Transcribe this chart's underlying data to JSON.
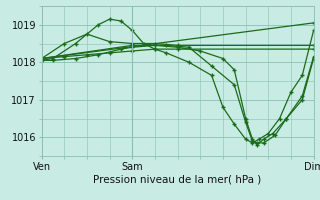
{
  "title": "Pression niveau de la mer( hPa )",
  "line_color": "#1a6b1a",
  "marker": "+",
  "bg_color": "#c8ece4",
  "grid_color": "#8abfb5",
  "xlim": [
    0,
    12
  ],
  "ylim": [
    1015.5,
    1019.5
  ],
  "yticks": [
    1016,
    1017,
    1018,
    1019
  ],
  "xtick_positions": [
    0,
    4,
    12
  ],
  "xtick_labels": [
    "Ven",
    "Sam",
    "Dim"
  ],
  "lines": [
    [
      0.0,
      1018.05,
      0.5,
      1018.1,
      1.5,
      1018.5,
      2.5,
      1019.0,
      3.0,
      1019.15,
      3.5,
      1019.1,
      4.0,
      1018.85,
      4.5,
      1018.5,
      5.0,
      1018.35,
      5.5,
      1018.25,
      6.5,
      1018.0,
      7.5,
      1017.65,
      8.0,
      1016.8,
      8.5,
      1016.35,
      9.0,
      1015.95,
      9.3,
      1015.85,
      9.6,
      1015.95,
      10.0,
      1016.1,
      10.5,
      1016.5,
      11.0,
      1017.2,
      11.5,
      1017.65,
      12.0,
      1018.85
    ],
    [
      0.0,
      1018.05,
      0.5,
      1018.05,
      1.5,
      1018.1,
      2.5,
      1018.2,
      3.5,
      1018.35,
      4.0,
      1018.4,
      5.0,
      1018.45,
      6.0,
      1018.4,
      7.0,
      1018.3,
      8.0,
      1018.1,
      8.5,
      1017.8,
      9.0,
      1016.5,
      9.3,
      1015.95,
      9.5,
      1015.8,
      9.8,
      1015.95,
      10.2,
      1016.1,
      10.8,
      1016.5,
      11.5,
      1017.1,
      12.0,
      1018.15
    ],
    [
      0.0,
      1018.1,
      1.0,
      1018.15,
      2.0,
      1018.2,
      3.0,
      1018.25,
      4.0,
      1018.3,
      5.0,
      1018.35,
      6.0,
      1018.35,
      12.0,
      1018.35
    ],
    [
      0.0,
      1018.1,
      12.0,
      1019.05
    ],
    [
      0.0,
      1018.1,
      1.0,
      1018.5,
      2.0,
      1018.75,
      3.0,
      1018.55,
      4.0,
      1018.5,
      5.0,
      1018.5,
      6.0,
      1018.45,
      12.0,
      1018.45
    ],
    [
      0.0,
      1018.1,
      4.0,
      1018.45,
      5.5,
      1018.45,
      6.5,
      1018.4,
      7.5,
      1017.9,
      8.5,
      1017.4,
      9.0,
      1016.4,
      9.3,
      1015.9,
      9.5,
      1015.85,
      9.8,
      1015.85,
      10.3,
      1016.05,
      10.8,
      1016.5,
      11.5,
      1017.0,
      12.0,
      1018.1
    ]
  ]
}
